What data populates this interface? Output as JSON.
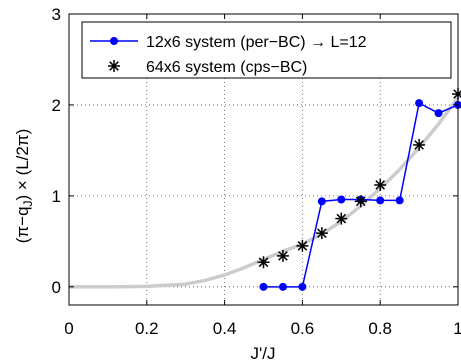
{
  "chart_data": {
    "type": "line",
    "xlabel": "J'/J",
    "ylabel_parts": {
      "open": "(π−q",
      "sub": "J",
      "close": ") × (L/2π)"
    },
    "xlim": [
      0,
      1
    ],
    "ylim": [
      -0.2,
      3
    ],
    "xticks": [
      0,
      0.2,
      0.4,
      0.6,
      0.8,
      1
    ],
    "xtick_labels": [
      "0",
      "0.2",
      "0.4",
      "0.6",
      "0.8",
      "1"
    ],
    "yticks": [
      0,
      1,
      2,
      3
    ],
    "ytick_labels": [
      "0",
      "1",
      "2",
      "3"
    ],
    "grid": true,
    "legend_position": "top-right",
    "series": [
      {
        "name": "12x6 system (per−BC) → L=12",
        "style": "line-marker",
        "color": "#0000ff",
        "x": [
          0.5,
          0.55,
          0.6,
          0.65,
          0.7,
          0.75,
          0.8,
          0.85,
          0.9,
          0.95,
          1.0
        ],
        "y": [
          0.0,
          0.0,
          0.0,
          0.94,
          0.96,
          0.96,
          0.95,
          0.95,
          2.02,
          1.91,
          2.0
        ]
      },
      {
        "name": "64x6 system (cps−BC)",
        "style": "star-marker",
        "color": "#000000",
        "x": [
          0.5,
          0.55,
          0.6,
          0.65,
          0.7,
          0.75,
          0.8,
          0.9,
          1.0
        ],
        "y": [
          0.27,
          0.34,
          0.45,
          0.59,
          0.75,
          0.94,
          1.12,
          1.56,
          2.12
        ]
      },
      {
        "style": "curve",
        "color": "#cccccc",
        "x": [
          0.0,
          0.1,
          0.2,
          0.3,
          0.35,
          0.4,
          0.45,
          0.5,
          0.55,
          0.6,
          0.65,
          0.7,
          0.75,
          0.8,
          0.85,
          0.9,
          0.95,
          1.0
        ],
        "y": [
          0.0,
          0.0,
          0.005,
          0.03,
          0.07,
          0.13,
          0.21,
          0.3,
          0.39,
          0.47,
          0.58,
          0.72,
          0.89,
          1.08,
          1.29,
          1.53,
          1.79,
          2.08
        ]
      }
    ]
  }
}
